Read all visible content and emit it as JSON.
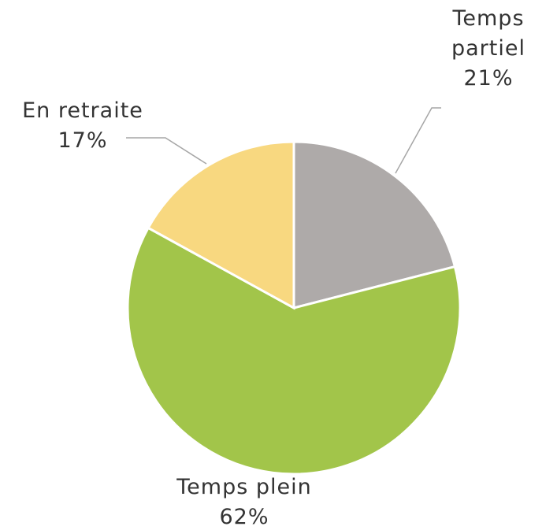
{
  "chart_data": {
    "type": "pie",
    "categories": [
      "Temps partiel",
      "Temps plein",
      "En retraite"
    ],
    "values": [
      21,
      62,
      17
    ],
    "value_labels": [
      "21%",
      "62%",
      "17%"
    ],
    "colors": [
      "#aeaaa9",
      "#a2c54a",
      "#f8d880"
    ]
  }
}
